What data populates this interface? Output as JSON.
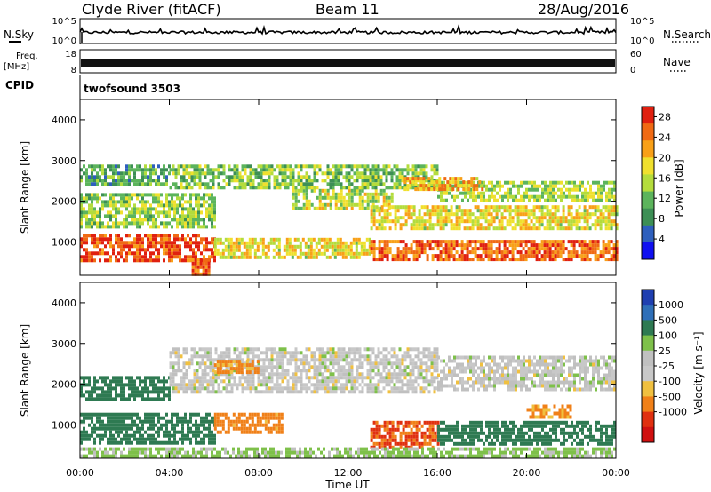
{
  "header": {
    "station": "Clyde River (fitACF)",
    "beam": "Beam 11",
    "date": "28/Aug/2016"
  },
  "noise_panel": {
    "left_label": "N.Sky",
    "right_label": "N.Search",
    "left_ticks": [
      "10^5",
      "10^0"
    ],
    "right_ticks": [
      "10^5",
      "10^0"
    ]
  },
  "freq_panel": {
    "left_label": "Freq.",
    "left_unit": "[MHz]",
    "left_ticks": [
      "18",
      "8"
    ],
    "right_label": "Nave",
    "right_ticks": [
      "60",
      "0"
    ]
  },
  "cpid": {
    "label": "CPID",
    "value": "twofsound 3503"
  },
  "colors": {
    "power_scale": [
      "#1010f0",
      "#2e5fbd",
      "#3d8f55",
      "#5cb45c",
      "#b4dc3c",
      "#f0e02e",
      "#f8a018",
      "#f06a14",
      "#e02010"
    ],
    "velocity_scale": [
      "#1f3fb0",
      "#2f6fb8",
      "#2e7a52",
      "#7ec04a",
      "#c0c0c0",
      "#c8c8c8",
      "#f0c040",
      "#f08018",
      "#e03010",
      "#d01010"
    ]
  },
  "chart_data": [
    {
      "type": "heatmap",
      "panel": "power",
      "xlabel": "Time UT",
      "ylabel": "Slant Range [km]",
      "xticks": [
        "00:00",
        "04:00",
        "08:00",
        "12:00",
        "16:00",
        "20:00",
        "00:00"
      ],
      "yticks": [
        "1000",
        "2000",
        "3000",
        "4000"
      ],
      "ylim": [
        180,
        4500
      ],
      "xlim": [
        0,
        24
      ],
      "colorbar": {
        "label": "Power [dB]",
        "ticks": [
          "4",
          "8",
          "12",
          "16",
          "20",
          "24",
          "28"
        ],
        "range": [
          0,
          30
        ]
      },
      "bands": [
        {
          "t0": 0.0,
          "t1": 6.0,
          "r0": 550,
          "r1": 1200,
          "level": 27
        },
        {
          "t0": 6.0,
          "t1": 13.0,
          "r0": 600,
          "r1": 1100,
          "level": 18
        },
        {
          "t0": 13.0,
          "t1": 24.0,
          "r0": 550,
          "r1": 1050,
          "level": 25
        },
        {
          "t0": 0.0,
          "t1": 6.0,
          "r0": 1400,
          "r1": 2200,
          "level": 14
        },
        {
          "t0": 9.5,
          "t1": 14.0,
          "r0": 1800,
          "r1": 2300,
          "level": 16
        },
        {
          "t0": 13.0,
          "t1": 24.0,
          "r0": 1350,
          "r1": 1900,
          "level": 18
        },
        {
          "t0": 4.0,
          "t1": 16.0,
          "r0": 2300,
          "r1": 2900,
          "level": 13
        },
        {
          "t0": 16.0,
          "t1": 24.0,
          "r0": 2000,
          "r1": 2500,
          "level": 15
        },
        {
          "t0": 0.0,
          "t1": 4.0,
          "r0": 2400,
          "r1": 2900,
          "level": 10
        },
        {
          "t0": 5.0,
          "t1": 5.8,
          "r0": 200,
          "r1": 600,
          "level": 26
        },
        {
          "t0": 14.5,
          "t1": 18.0,
          "r0": 2300,
          "r1": 2600,
          "level": 21
        }
      ]
    },
    {
      "type": "heatmap",
      "panel": "velocity",
      "xlabel": "Time UT",
      "ylabel": "Slant Range [km]",
      "xticks": [
        "00:00",
        "04:00",
        "08:00",
        "12:00",
        "16:00",
        "20:00",
        "00:00"
      ],
      "yticks": [
        "1000",
        "2000",
        "3000",
        "4000"
      ],
      "ylim": [
        180,
        4500
      ],
      "xlim": [
        0,
        24
      ],
      "colorbar": {
        "label": "Velocity [m s⁻¹]",
        "ticks": [
          "1000",
          "500",
          "100",
          "25",
          "-25",
          "-100",
          "-500",
          "-1000"
        ]
      },
      "bands": [
        {
          "t0": 0.0,
          "t1": 6.0,
          "r0": 550,
          "r1": 1300,
          "level": 350
        },
        {
          "t0": 0.0,
          "t1": 4.0,
          "r0": 1600,
          "r1": 2200,
          "level": 300
        },
        {
          "t0": 4.0,
          "t1": 16.0,
          "r0": 1800,
          "r1": 2900,
          "level": 0
        },
        {
          "t0": 16.0,
          "t1": 24.0,
          "r0": 1900,
          "r1": 2700,
          "level": 0
        },
        {
          "t0": 6.0,
          "t1": 9.0,
          "r0": 800,
          "r1": 1300,
          "level": -150
        },
        {
          "t0": 13.0,
          "t1": 16.0,
          "r0": 450,
          "r1": 1100,
          "level": -550
        },
        {
          "t0": 16.0,
          "t1": 24.0,
          "r0": 500,
          "r1": 1100,
          "level": 300
        },
        {
          "t0": 0.0,
          "t1": 24.0,
          "r0": 200,
          "r1": 450,
          "level": 40
        },
        {
          "t0": 6.0,
          "t1": 8.0,
          "r0": 2300,
          "r1": 2600,
          "level": -120
        },
        {
          "t0": 20.0,
          "t1": 22.0,
          "r0": 1200,
          "r1": 1500,
          "level": -120
        }
      ]
    }
  ]
}
